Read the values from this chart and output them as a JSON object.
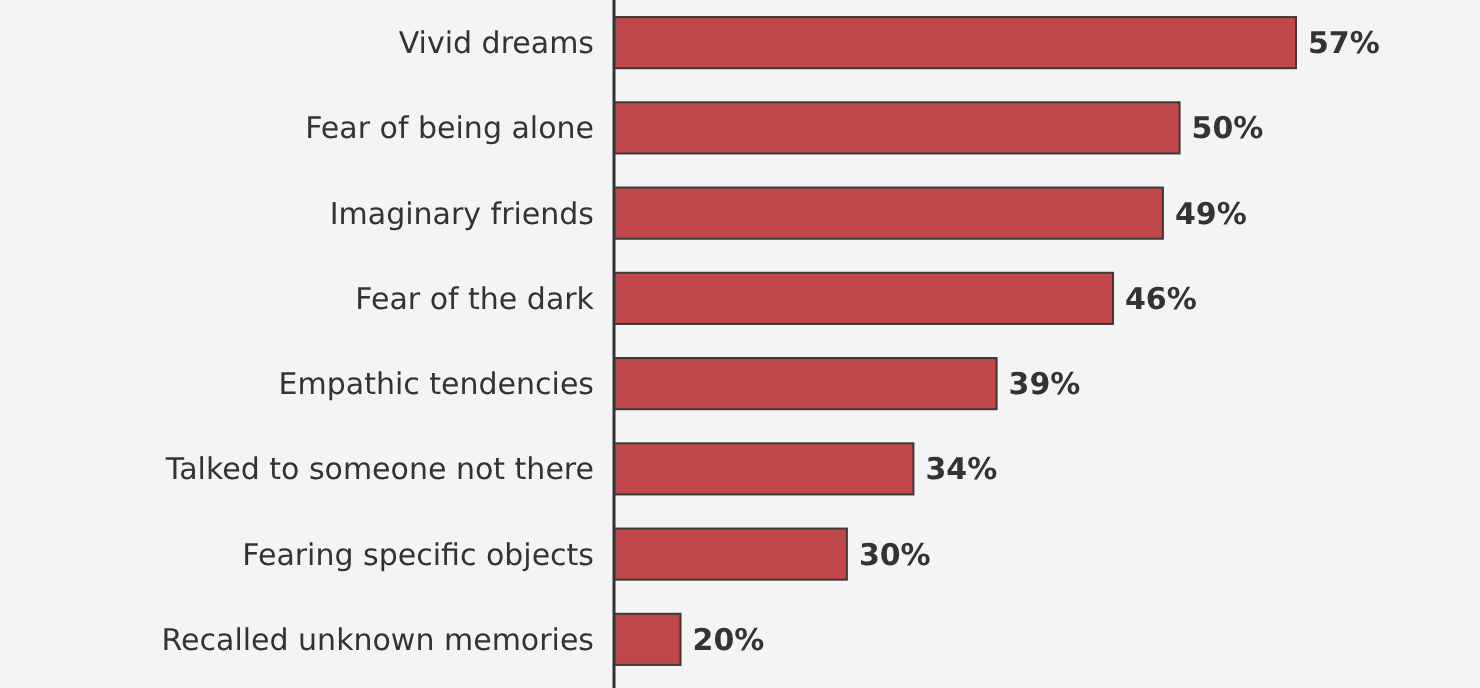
{
  "chart_data": {
    "type": "bar",
    "orientation": "horizontal",
    "categories": [
      "Vivid dreams",
      "Fear of being alone",
      "Imaginary friends",
      "Fear of the dark",
      "Empathic tendencies",
      "Talked to someone not there",
      "Fearing specific objects",
      "Recalled unknown memories"
    ],
    "values": [
      57,
      50,
      49,
      46,
      39,
      34,
      30,
      20
    ],
    "value_labels": [
      "57%",
      "50%",
      "49%",
      "46%",
      "39%",
      "34%",
      "30%",
      "20%"
    ],
    "color": "#c0474a",
    "xlim": [
      16,
      57
    ],
    "tick_labels": "y"
  }
}
